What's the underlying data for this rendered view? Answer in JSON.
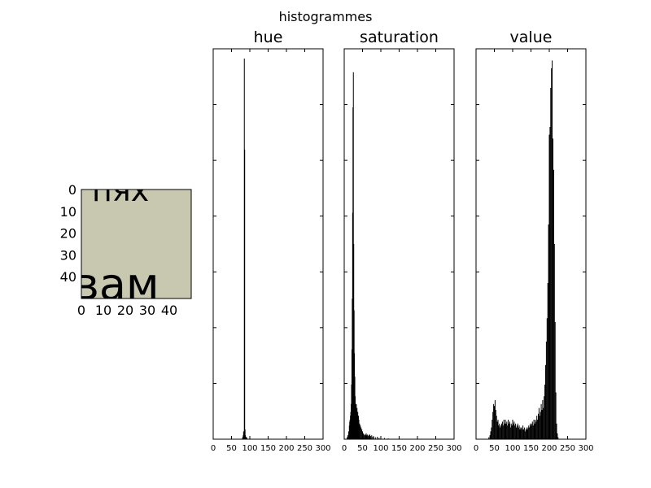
{
  "figure": {
    "suptitle": "histogrammes",
    "thumbnail": {
      "description_glyph_text_top": "пях",
      "description_glyph_text_bottom": "вам",
      "background_color": "#c8c8b0",
      "text_color": "#333333",
      "xticks": [
        "0",
        "10",
        "20",
        "30",
        "40"
      ],
      "yticks": [
        "0",
        "10",
        "20",
        "30",
        "40"
      ]
    }
  },
  "chart_data": [
    {
      "type": "bar",
      "title": "hue",
      "xlim": [
        0,
        300
      ],
      "xticks": [
        0,
        50,
        100,
        150,
        200,
        250,
        300
      ],
      "xtick_labels": [
        "0",
        "50",
        "100",
        "150",
        "200",
        "250",
        "300"
      ],
      "ylim": [
        0,
        1.0
      ],
      "ytick_labels_shown": false,
      "bin_width": 1,
      "points": [
        [
          80,
          0.003
        ],
        [
          81,
          0.006
        ],
        [
          82,
          0.01
        ],
        [
          83,
          0.02
        ],
        [
          84,
          0.015
        ],
        [
          85,
          0.975
        ],
        [
          86,
          0.742
        ],
        [
          87,
          0.025
        ],
        [
          88,
          0.01
        ],
        [
          89,
          0.006
        ],
        [
          90,
          0.003
        ],
        [
          91,
          0.005
        ],
        [
          92,
          0.003
        ]
      ]
    },
    {
      "type": "bar",
      "title": "saturation",
      "xlim": [
        0,
        300
      ],
      "xticks": [
        0,
        50,
        100,
        150,
        200,
        250,
        300
      ],
      "xtick_labels": [
        "0",
        "50",
        "100",
        "150",
        "200",
        "250",
        "300"
      ],
      "ylim": [
        0,
        1.0
      ],
      "ytick_labels_shown": false,
      "bin_width": 1,
      "points": [
        [
          8,
          0.005
        ],
        [
          10,
          0.01
        ],
        [
          12,
          0.02
        ],
        [
          14,
          0.035
        ],
        [
          15,
          0.045
        ],
        [
          16,
          0.05
        ],
        [
          17,
          0.06
        ],
        [
          18,
          0.07
        ],
        [
          19,
          0.09
        ],
        [
          20,
          0.14
        ],
        [
          21,
          0.23
        ],
        [
          22,
          0.36
        ],
        [
          23,
          0.58
        ],
        [
          24,
          0.85
        ],
        [
          25,
          0.94
        ],
        [
          26,
          0.5
        ],
        [
          27,
          0.33
        ],
        [
          28,
          0.22
        ],
        [
          29,
          0.16
        ],
        [
          30,
          0.11
        ],
        [
          31,
          0.09
        ],
        [
          32,
          0.08
        ],
        [
          33,
          0.09
        ],
        [
          34,
          0.07
        ],
        [
          35,
          0.08
        ],
        [
          36,
          0.06
        ],
        [
          37,
          0.07
        ],
        [
          38,
          0.05
        ],
        [
          39,
          0.06
        ],
        [
          40,
          0.05
        ],
        [
          42,
          0.04
        ],
        [
          44,
          0.035
        ],
        [
          46,
          0.03
        ],
        [
          48,
          0.025
        ],
        [
          50,
          0.02
        ],
        [
          52,
          0.015
        ],
        [
          54,
          0.012
        ],
        [
          56,
          0.01
        ],
        [
          58,
          0.012
        ],
        [
          60,
          0.015
        ],
        [
          62,
          0.01
        ],
        [
          64,
          0.012
        ],
        [
          66,
          0.008
        ],
        [
          68,
          0.01
        ],
        [
          70,
          0.012
        ],
        [
          72,
          0.008
        ],
        [
          75,
          0.01
        ],
        [
          78,
          0.006
        ],
        [
          80,
          0.008
        ],
        [
          85,
          0.005
        ],
        [
          90,
          0.006
        ],
        [
          95,
          0.004
        ],
        [
          100,
          0.003
        ],
        [
          110,
          0.003
        ],
        [
          120,
          0.002
        ]
      ]
    },
    {
      "type": "bar",
      "title": "value",
      "xlim": [
        0,
        300
      ],
      "xticks": [
        0,
        50,
        100,
        150,
        200,
        250,
        300
      ],
      "xtick_labels": [
        "0",
        "50",
        "100",
        "150",
        "200",
        "250",
        "300"
      ],
      "ylim": [
        0,
        1.0
      ],
      "ytick_labels_shown": false,
      "bin_width": 1,
      "points": [
        [
          35,
          0.005
        ],
        [
          38,
          0.01
        ],
        [
          40,
          0.02
        ],
        [
          42,
          0.03
        ],
        [
          44,
          0.05
        ],
        [
          46,
          0.07
        ],
        [
          48,
          0.09
        ],
        [
          50,
          0.085
        ],
        [
          52,
          0.1
        ],
        [
          54,
          0.075
        ],
        [
          56,
          0.06
        ],
        [
          58,
          0.045
        ],
        [
          60,
          0.05
        ],
        [
          62,
          0.035
        ],
        [
          64,
          0.04
        ],
        [
          66,
          0.03
        ],
        [
          68,
          0.035
        ],
        [
          70,
          0.04
        ],
        [
          72,
          0.045
        ],
        [
          74,
          0.035
        ],
        [
          76,
          0.05
        ],
        [
          78,
          0.04
        ],
        [
          80,
          0.05
        ],
        [
          82,
          0.04
        ],
        [
          84,
          0.045
        ],
        [
          86,
          0.035
        ],
        [
          88,
          0.05
        ],
        [
          90,
          0.04
        ],
        [
          92,
          0.045
        ],
        [
          94,
          0.03
        ],
        [
          96,
          0.04
        ],
        [
          98,
          0.035
        ],
        [
          100,
          0.05
        ],
        [
          102,
          0.04
        ],
        [
          104,
          0.045
        ],
        [
          106,
          0.035
        ],
        [
          108,
          0.04
        ],
        [
          110,
          0.03
        ],
        [
          112,
          0.035
        ],
        [
          114,
          0.04
        ],
        [
          116,
          0.03
        ],
        [
          118,
          0.035
        ],
        [
          120,
          0.025
        ],
        [
          122,
          0.03
        ],
        [
          124,
          0.03
        ],
        [
          126,
          0.025
        ],
        [
          128,
          0.035
        ],
        [
          130,
          0.025
        ],
        [
          132,
          0.03
        ],
        [
          134,
          0.02
        ],
        [
          136,
          0.025
        ],
        [
          138,
          0.03
        ],
        [
          140,
          0.025
        ],
        [
          142,
          0.03
        ],
        [
          144,
          0.035
        ],
        [
          146,
          0.03
        ],
        [
          148,
          0.04
        ],
        [
          150,
          0.035
        ],
        [
          152,
          0.04
        ],
        [
          154,
          0.045
        ],
        [
          156,
          0.035
        ],
        [
          158,
          0.05
        ],
        [
          160,
          0.04
        ],
        [
          162,
          0.05
        ],
        [
          164,
          0.045
        ],
        [
          166,
          0.06
        ],
        [
          168,
          0.05
        ],
        [
          170,
          0.065
        ],
        [
          172,
          0.08
        ],
        [
          174,
          0.06
        ],
        [
          176,
          0.07
        ],
        [
          178,
          0.09
        ],
        [
          180,
          0.075
        ],
        [
          182,
          0.1
        ],
        [
          184,
          0.08
        ],
        [
          186,
          0.11
        ],
        [
          188,
          0.14
        ],
        [
          190,
          0.19
        ],
        [
          192,
          0.25
        ],
        [
          194,
          0.31
        ],
        [
          196,
          0.4
        ],
        [
          198,
          0.55
        ],
        [
          200,
          0.78
        ],
        [
          202,
          0.8
        ],
        [
          204,
          0.9
        ],
        [
          206,
          0.95
        ],
        [
          208,
          0.97
        ],
        [
          210,
          0.77
        ],
        [
          212,
          0.69
        ],
        [
          214,
          0.5
        ],
        [
          216,
          0.3
        ],
        [
          218,
          0.12
        ],
        [
          220,
          0.04
        ],
        [
          222,
          0.015
        ],
        [
          224,
          0.005
        ]
      ]
    }
  ]
}
